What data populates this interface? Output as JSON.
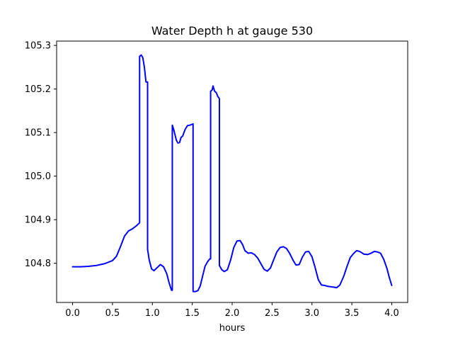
{
  "chart_data": {
    "type": "line",
    "title": "Water Depth h at gauge 530",
    "xlabel": "hours",
    "ylabel": "",
    "xlim": [
      -0.2,
      4.2
    ],
    "ylim": [
      104.71,
      105.31
    ],
    "xticks": [
      0.0,
      0.5,
      1.0,
      1.5,
      2.0,
      2.5,
      3.0,
      3.5,
      4.0
    ],
    "xtick_labels": [
      "0.0",
      "0.5",
      "1.0",
      "1.5",
      "2.0",
      "2.5",
      "3.0",
      "3.5",
      "4.0"
    ],
    "yticks": [
      104.8,
      104.9,
      105.0,
      105.1,
      105.2,
      105.3
    ],
    "ytick_labels": [
      "104.8",
      "104.9",
      "105.0",
      "105.1",
      "105.2",
      "105.3"
    ],
    "grid": false,
    "series": [
      {
        "color": "#0000ff",
        "x": [
          0.0,
          0.1,
          0.2,
          0.3,
          0.4,
          0.5,
          0.55,
          0.6,
          0.65,
          0.7,
          0.75,
          0.8,
          0.84,
          0.84,
          0.86,
          0.88,
          0.9,
          0.92,
          0.94,
          0.94,
          0.96,
          0.99,
          1.02,
          1.06,
          1.1,
          1.14,
          1.18,
          1.21,
          1.24,
          1.25,
          1.25,
          1.27,
          1.3,
          1.32,
          1.34,
          1.36,
          1.38,
          1.41,
          1.44,
          1.47,
          1.5,
          1.51,
          1.51,
          1.54,
          1.57,
          1.6,
          1.63,
          1.66,
          1.69,
          1.72,
          1.73,
          1.73,
          1.75,
          1.76,
          1.78,
          1.8,
          1.82,
          1.84,
          1.84,
          1.87,
          1.9,
          1.94,
          1.98,
          2.02,
          2.06,
          2.1,
          2.13,
          2.16,
          2.2,
          2.24,
          2.28,
          2.32,
          2.36,
          2.4,
          2.44,
          2.48,
          2.52,
          2.56,
          2.6,
          2.64,
          2.68,
          2.72,
          2.76,
          2.8,
          2.84,
          2.88,
          2.92,
          2.96,
          3.0,
          3.04,
          3.08,
          3.12,
          3.16,
          3.2,
          3.24,
          3.28,
          3.31,
          3.35,
          3.4,
          3.44,
          3.48,
          3.52,
          3.56,
          3.6,
          3.65,
          3.7,
          3.74,
          3.78,
          3.82,
          3.86,
          3.9,
          3.94,
          3.97,
          4.0
        ],
        "y": [
          104.792,
          104.792,
          104.793,
          104.795,
          104.799,
          104.806,
          104.816,
          104.838,
          104.862,
          104.874,
          104.879,
          104.886,
          104.893,
          105.275,
          105.278,
          105.272,
          105.25,
          105.216,
          105.216,
          104.832,
          104.808,
          104.787,
          104.783,
          104.79,
          104.797,
          104.792,
          104.776,
          104.755,
          104.738,
          104.738,
          105.117,
          105.105,
          105.083,
          105.076,
          105.077,
          105.089,
          105.092,
          105.107,
          105.116,
          105.117,
          105.119,
          105.12,
          104.735,
          104.735,
          104.737,
          104.748,
          104.771,
          104.793,
          104.803,
          104.81,
          104.81,
          105.195,
          105.198,
          105.207,
          105.195,
          105.192,
          105.183,
          105.178,
          104.795,
          104.785,
          104.781,
          104.785,
          104.807,
          104.836,
          104.851,
          104.852,
          104.843,
          104.829,
          104.823,
          104.824,
          104.82,
          104.812,
          104.799,
          104.786,
          104.782,
          104.789,
          104.808,
          104.826,
          104.836,
          104.838,
          104.834,
          104.823,
          104.808,
          104.796,
          104.797,
          104.814,
          104.826,
          104.827,
          104.815,
          104.79,
          104.762,
          104.75,
          104.749,
          104.747,
          104.746,
          104.745,
          104.744,
          104.75,
          104.771,
          104.793,
          104.813,
          104.822,
          104.829,
          104.827,
          104.821,
          104.82,
          104.823,
          104.827,
          104.826,
          104.823,
          104.809,
          104.788,
          104.767,
          104.749
        ]
      }
    ]
  }
}
